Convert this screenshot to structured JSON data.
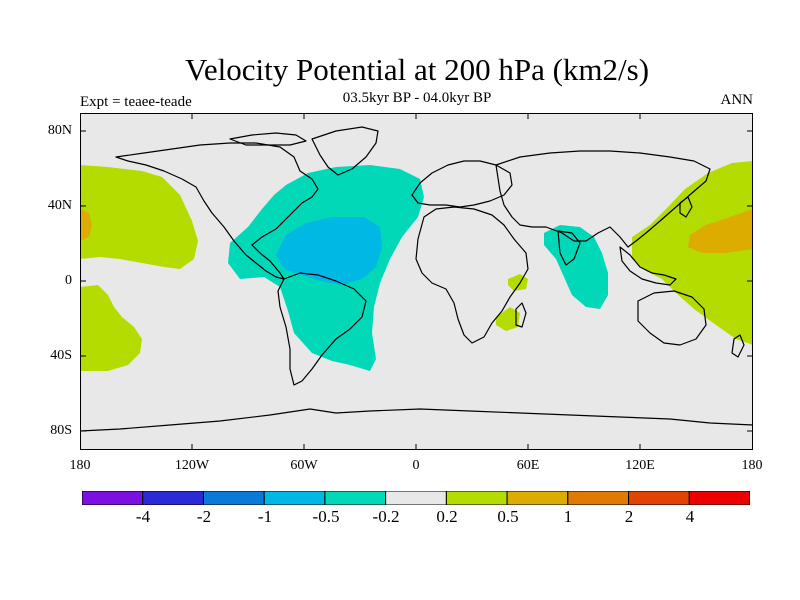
{
  "title": "Velocity Potential at 200 hPa (km2/s)",
  "subtitle": "03.5kyr BP - 04.0kyr BP",
  "left_label": "Expt = teaee-teade",
  "right_label": "ANN",
  "axes": {
    "y_ticks": [
      "80N",
      "40N",
      "0",
      "40S",
      "80S"
    ],
    "x_ticks": [
      "180",
      "120W",
      "60W",
      "0",
      "60E",
      "120E",
      "180"
    ]
  },
  "legend": {
    "colors": [
      "#7b10e0",
      "#2a2ad6",
      "#0a7ad8",
      "#00b8e4",
      "#00d8b8",
      "#e8e8e8",
      "#b4dc00",
      "#dcac00",
      "#e07a00",
      "#e04400",
      "#ec0000"
    ],
    "labels": [
      "-4",
      "-2",
      "-1",
      "-0.5",
      "-0.2",
      "0.2",
      "0.5",
      "1",
      "2",
      "4"
    ]
  },
  "map_colors": {
    "background": "#e8e8e8",
    "negative_weak": "#00d8b8",
    "negative_strong": "#00b8e4",
    "positive_weak": "#b4dc00",
    "positive_medium": "#dcac00"
  }
}
